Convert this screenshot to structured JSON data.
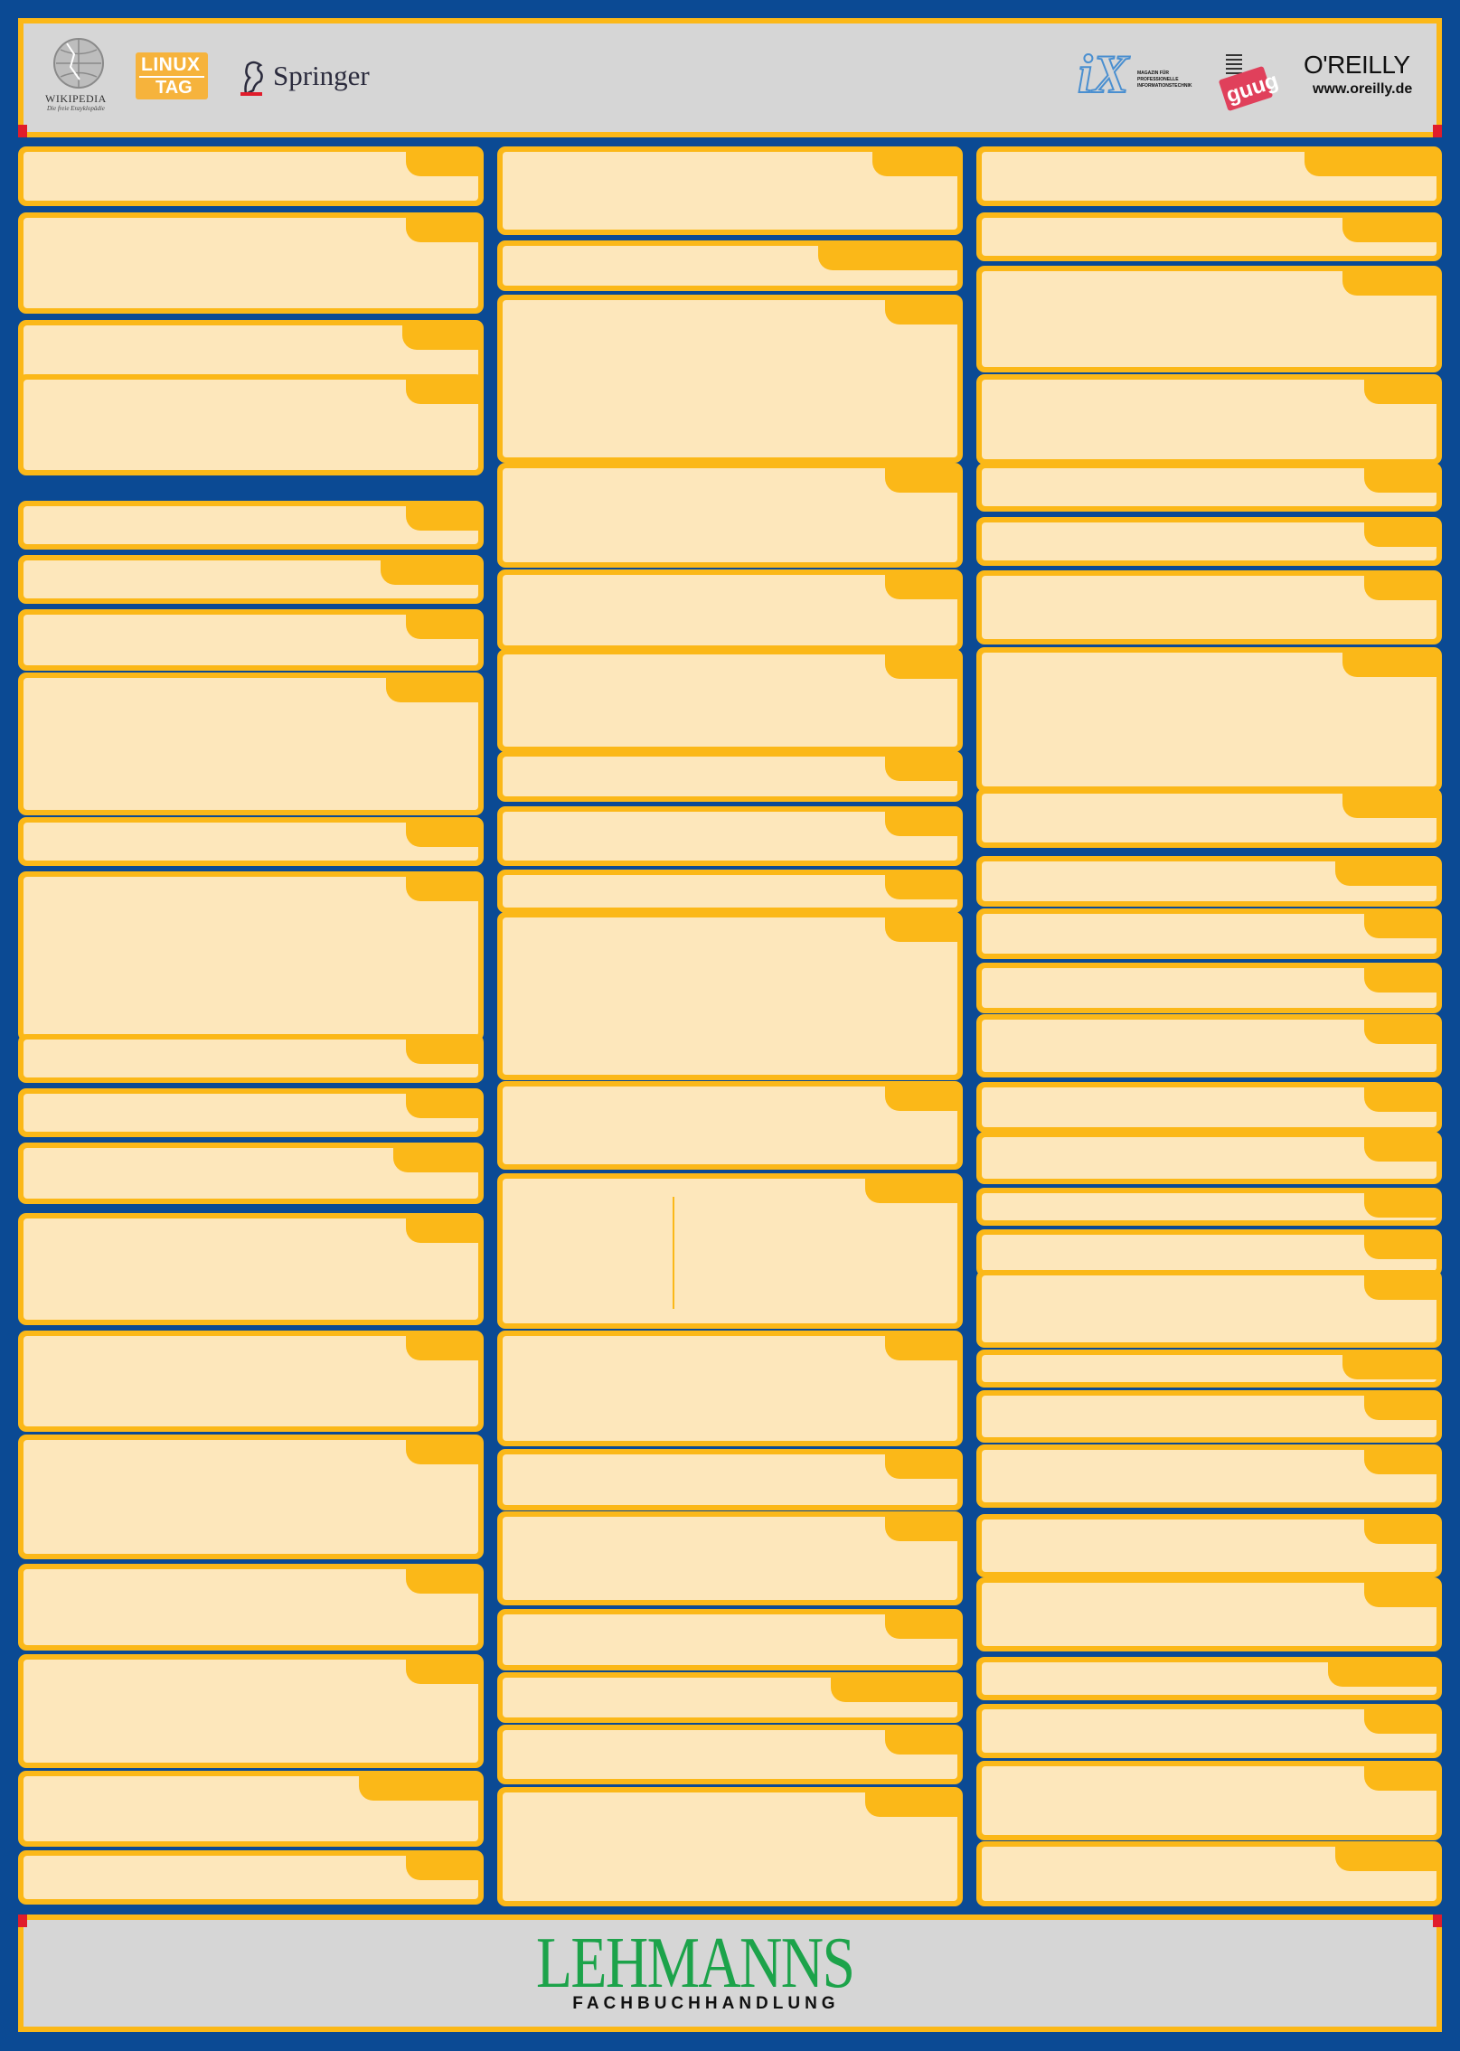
{
  "header": {
    "logos": [
      {
        "name": "wikipedia",
        "label": "WIKIPEDIA",
        "tagline": "Die freie Enzyklopädie"
      },
      {
        "name": "linuxtag",
        "label_top": "LINUX",
        "label_bottom": "TAG"
      },
      {
        "name": "springer",
        "label": "Springer"
      },
      {
        "name": "ix",
        "label": "iX",
        "tagline": "MAGAZIN FÜR PROFESSIONELLE INFORMATIONSTECHNIK"
      },
      {
        "name": "guug",
        "label": "guug"
      },
      {
        "name": "oreilly",
        "label": "O'REILLY",
        "url": "www.oreilly.de"
      }
    ]
  },
  "footer": {
    "brand": "LEHMANNS",
    "sub": "FACHBUCHHANDLUNG"
  },
  "colors": {
    "background": "#0b4a94",
    "frame": "#fbb818",
    "panel": "#fde7bb",
    "bar": "#d6d6d6",
    "accent_red": "#e01c2b",
    "lehmanns_green": "#1ca34a"
  }
}
